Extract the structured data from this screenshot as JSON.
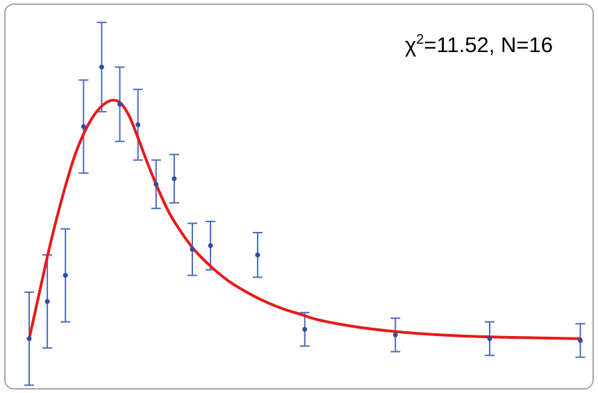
{
  "chart_data": {
    "type": "scatter",
    "title": "",
    "xlabel": "",
    "ylabel": "",
    "xlim": [
      0,
      15.4
    ],
    "ylim": [
      -1.2,
      8.3
    ],
    "grid": false,
    "legend": "none",
    "annotation": {
      "chi_symbol": "χ",
      "chi_exponent": "2",
      "rest": "=11.52, N=16"
    },
    "points": [
      {
        "x": 0.0,
        "y": 0.0,
        "err": 1.25
      },
      {
        "x": 0.5,
        "y": 1.0,
        "err": 1.25
      },
      {
        "x": 1.0,
        "y": 1.7,
        "err": 1.25
      },
      {
        "x": 1.5,
        "y": 5.7,
        "err": 1.25
      },
      {
        "x": 2.0,
        "y": 7.3,
        "err": 1.2
      },
      {
        "x": 2.5,
        "y": 6.3,
        "err": 1.0
      },
      {
        "x": 3.0,
        "y": 5.75,
        "err": 0.95
      },
      {
        "x": 3.5,
        "y": 4.15,
        "err": 0.65
      },
      {
        "x": 4.0,
        "y": 4.3,
        "err": 0.65
      },
      {
        "x": 4.5,
        "y": 2.4,
        "err": 0.7
      },
      {
        "x": 5.0,
        "y": 2.5,
        "err": 0.65
      },
      {
        "x": 6.3,
        "y": 2.25,
        "err": 0.6
      },
      {
        "x": 7.6,
        "y": 0.25,
        "err": 0.45
      },
      {
        "x": 10.1,
        "y": 0.1,
        "err": 0.45
      },
      {
        "x": 12.7,
        "y": 0.0,
        "err": 0.45
      },
      {
        "x": 15.2,
        "y": -0.05,
        "err": 0.45
      }
    ],
    "fit_curve": {
      "x": [
        0.0,
        0.25,
        0.5,
        0.75,
        1.0,
        1.25,
        1.5,
        1.75,
        2.0,
        2.25,
        2.5,
        2.75,
        3.0,
        3.25,
        3.5,
        3.75,
        4.0,
        4.5,
        5.0,
        5.5,
        6.0,
        6.5,
        7.0,
        7.5,
        8.0,
        9.0,
        10.0,
        11.0,
        12.0,
        13.0,
        14.0,
        15.2
      ],
      "y": [
        0.0,
        1.1,
        2.2,
        3.2,
        4.1,
        4.9,
        5.5,
        5.95,
        6.25,
        6.4,
        6.35,
        6.0,
        5.4,
        4.75,
        4.15,
        3.6,
        3.15,
        2.45,
        1.95,
        1.55,
        1.25,
        1.0,
        0.8,
        0.65,
        0.5,
        0.32,
        0.2,
        0.12,
        0.07,
        0.04,
        0.02,
        0.0
      ]
    },
    "colors": {
      "points": "#2c4fa3",
      "error_bars": "#4a6cc0",
      "fit_line": "#e8191b",
      "frame_border": "#a8a8a8"
    }
  }
}
